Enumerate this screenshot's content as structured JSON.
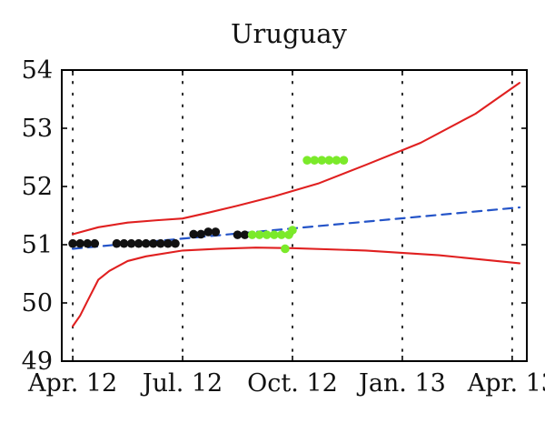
{
  "chart_data": {
    "type": "scatter",
    "title": "Uruguay",
    "xlabel": "",
    "ylabel": "",
    "x_ticks": [
      "Apr. 12",
      "Jul. 12",
      "Oct. 12",
      "Jan. 13",
      "Apr. 13"
    ],
    "y_ticks": [
      "49",
      "50",
      "51",
      "52",
      "53",
      "54"
    ],
    "ylim": [
      49,
      54
    ],
    "x_unit": "months since Apr. 12",
    "xlim": [
      -0.3,
      12.4
    ],
    "grid": "vertical dotted lines at x ticks",
    "series": [
      {
        "points": [
          {
            "x": 0.0,
            "y": 51.02
          },
          {
            "x": 0.2,
            "y": 51.02
          },
          {
            "x": 0.4,
            "y": 51.02
          },
          {
            "x": 0.6,
            "y": 51.02
          },
          {
            "x": 1.2,
            "y": 51.02
          },
          {
            "x": 1.4,
            "y": 51.02
          },
          {
            "x": 1.6,
            "y": 51.02
          },
          {
            "x": 1.8,
            "y": 51.02
          },
          {
            "x": 2.0,
            "y": 51.02
          },
          {
            "x": 2.2,
            "y": 51.02
          },
          {
            "x": 2.4,
            "y": 51.02
          },
          {
            "x": 2.6,
            "y": 51.02
          },
          {
            "x": 2.8,
            "y": 51.02
          },
          {
            "x": 3.3,
            "y": 51.18
          },
          {
            "x": 3.5,
            "y": 51.18
          },
          {
            "x": 3.7,
            "y": 51.22
          },
          {
            "x": 3.9,
            "y": 51.22
          },
          {
            "x": 4.5,
            "y": 51.17
          },
          {
            "x": 4.7,
            "y": 51.17
          }
        ],
        "color": "#111111"
      },
      {
        "points": [
          {
            "x": 4.9,
            "y": 51.17
          },
          {
            "x": 5.1,
            "y": 51.17
          },
          {
            "x": 5.3,
            "y": 51.17
          },
          {
            "x": 5.5,
            "y": 51.17
          },
          {
            "x": 5.7,
            "y": 51.17
          },
          {
            "x": 5.9,
            "y": 51.17
          },
          {
            "x": 5.8,
            "y": 50.93
          },
          {
            "x": 6.0,
            "y": 51.25
          },
          {
            "x": 6.4,
            "y": 52.45
          },
          {
            "x": 6.6,
            "y": 52.45
          },
          {
            "x": 6.8,
            "y": 52.45
          },
          {
            "x": 7.0,
            "y": 52.45
          },
          {
            "x": 7.2,
            "y": 52.45
          },
          {
            "x": 7.4,
            "y": 52.45
          }
        ],
        "color": "#7bea2a"
      }
    ],
    "lines": [
      {
        "style": "dashed",
        "color": "#2454c8",
        "points": [
          {
            "x": 0,
            "y": 50.93
          },
          {
            "x": 12.2,
            "y": 51.64
          }
        ]
      },
      {
        "style": "solid",
        "color": "#e02020",
        "points": [
          {
            "x": 0,
            "y": 51.18
          },
          {
            "x": 0.7,
            "y": 51.3
          },
          {
            "x": 1.5,
            "y": 51.38
          },
          {
            "x": 2.3,
            "y": 51.42
          },
          {
            "x": 3.0,
            "y": 51.45
          },
          {
            "x": 3.7,
            "y": 51.55
          },
          {
            "x": 4.5,
            "y": 51.67
          },
          {
            "x": 5.5,
            "y": 51.83
          },
          {
            "x": 6.7,
            "y": 52.05
          },
          {
            "x": 8.0,
            "y": 52.37
          },
          {
            "x": 9.5,
            "y": 52.75
          },
          {
            "x": 11.0,
            "y": 53.25
          },
          {
            "x": 12.2,
            "y": 53.78
          }
        ]
      },
      {
        "style": "solid",
        "color": "#e02020",
        "points": [
          {
            "x": 0,
            "y": 49.6
          },
          {
            "x": 0.2,
            "y": 49.78
          },
          {
            "x": 0.4,
            "y": 50.03
          },
          {
            "x": 0.7,
            "y": 50.4
          },
          {
            "x": 1.0,
            "y": 50.55
          },
          {
            "x": 1.5,
            "y": 50.72
          },
          {
            "x": 2.0,
            "y": 50.8
          },
          {
            "x": 3.0,
            "y": 50.9
          },
          {
            "x": 4.0,
            "y": 50.93
          },
          {
            "x": 5.0,
            "y": 50.95
          },
          {
            "x": 6.0,
            "y": 50.94
          },
          {
            "x": 8.0,
            "y": 50.9
          },
          {
            "x": 10.0,
            "y": 50.82
          },
          {
            "x": 12.2,
            "y": 50.68
          }
        ]
      }
    ],
    "colors": {
      "axis": "#000000",
      "grid": "#111111",
      "black_points": "#111111",
      "green_points": "#7bea2a",
      "trend_line": "#2454c8",
      "bounds": "#e02020"
    }
  }
}
